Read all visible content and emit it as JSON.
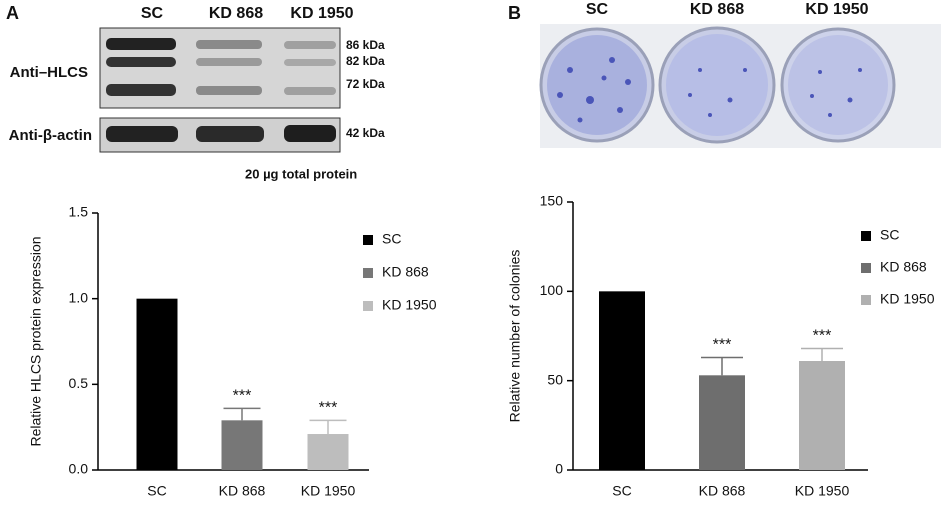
{
  "blot": {
    "panel_label": "A",
    "lanes": [
      "SC",
      "KD 868",
      "KD 1950"
    ],
    "rows": [
      "Anti–HLCS",
      "Anti-β-actin"
    ],
    "markers": [
      "86 kDa",
      "82 kDa",
      "72 kDa",
      "42 kDa"
    ],
    "note": "20 µg total protein"
  },
  "colony": {
    "panel_label": "B",
    "lanes": [
      "SC",
      "KD 868",
      "KD 1950"
    ]
  },
  "chart_data": [
    {
      "type": "bar",
      "y_label": "Relative HLCS protein expression",
      "categories": [
        "SC",
        "KD 868",
        "KD 1950"
      ],
      "values": [
        1.0,
        0.29,
        0.21
      ],
      "errors": [
        null,
        0.07,
        0.08
      ],
      "annotations": [
        null,
        "***",
        "***"
      ],
      "colors": [
        "#000000",
        "#777777",
        "#bdbdbd"
      ],
      "ylim": [
        0,
        1.5
      ],
      "yticks": [
        {
          "value": 0,
          "label": "0.0"
        },
        0.5,
        {
          "value": 1,
          "label": "1.0"
        },
        1.5
      ]
    },
    {
      "type": "bar",
      "y_label": "Relative number of colonies",
      "categories": [
        "SC",
        "KD 868",
        "KD 1950"
      ],
      "values": [
        100,
        53,
        61
      ],
      "errors": [
        null,
        10,
        7
      ],
      "annotations": [
        null,
        "***",
        "***"
      ],
      "colors": [
        "#000000",
        "#6e6e6e",
        "#b0b0b0"
      ],
      "ylim": [
        0,
        150
      ],
      "yticks": [
        0,
        50,
        100,
        150
      ]
    }
  ]
}
